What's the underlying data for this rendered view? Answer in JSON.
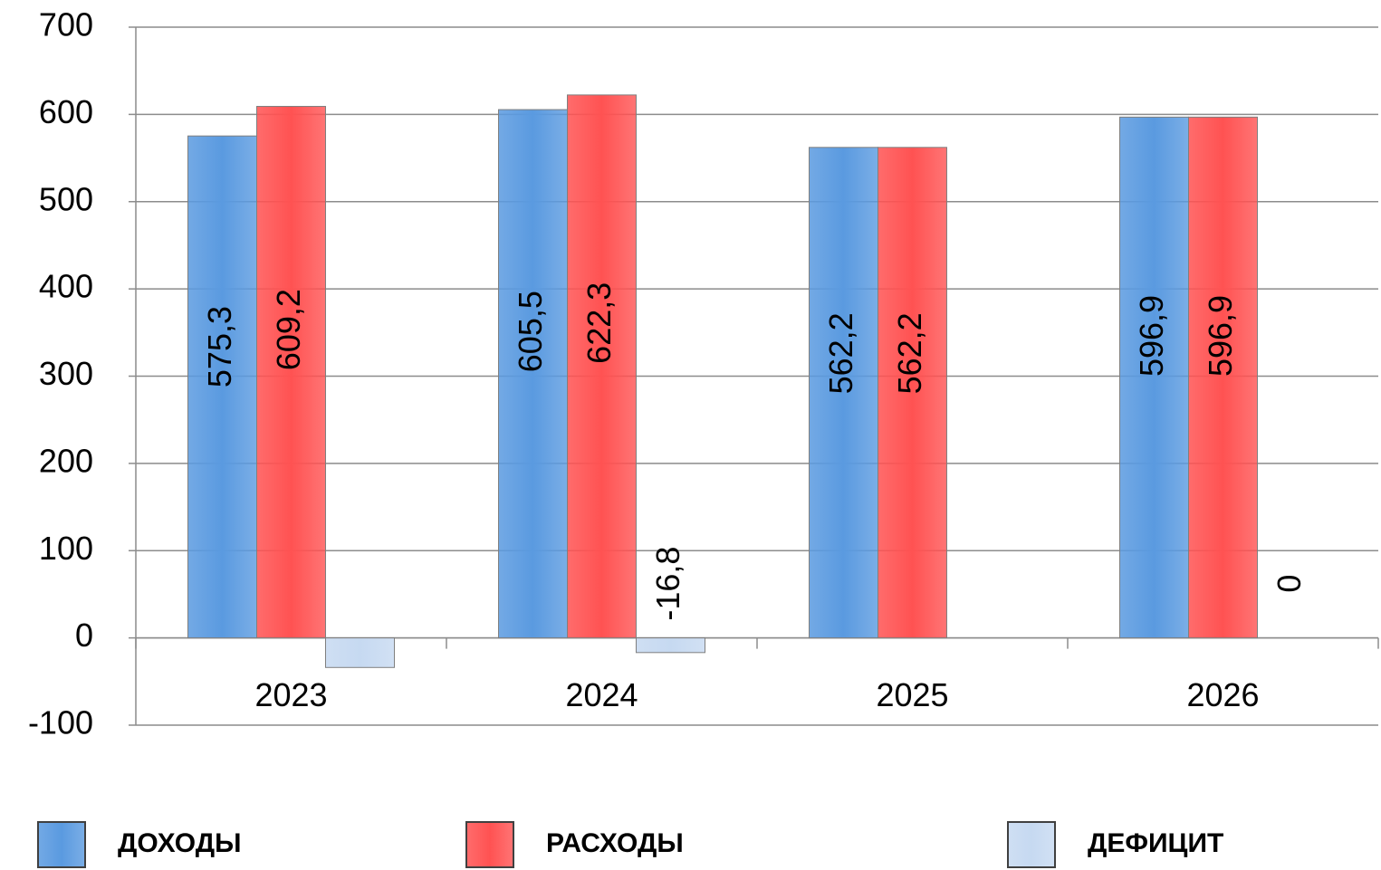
{
  "chart_data": {
    "type": "bar",
    "categories": [
      "2023",
      "2024",
      "2025",
      "2026"
    ],
    "series": [
      {
        "name": "ДОХОДЫ",
        "color": "#5a9ae0",
        "values": [
          575.3,
          605.5,
          562.2,
          596.9
        ],
        "value_labels": [
          "575,3",
          "605,5",
          "562,2",
          "596,9"
        ]
      },
      {
        "name": "РАСХОДЫ",
        "color": "#ff5252",
        "values": [
          609.2,
          622.3,
          562.2,
          596.9
        ],
        "value_labels": [
          "609,2",
          "622,3",
          "562,2",
          "596,9"
        ]
      },
      {
        "name": "ДЕФИЦИТ",
        "color": "#c6d9f1",
        "values": [
          -33.9,
          -16.8,
          0,
          0
        ],
        "value_labels": [
          null,
          "-16,8",
          null,
          "0"
        ]
      }
    ],
    "ylim": [
      -100,
      700
    ],
    "yticks": [
      -100,
      0,
      100,
      200,
      300,
      400,
      500,
      600,
      700
    ],
    "grid": true,
    "legend": "bottom"
  }
}
